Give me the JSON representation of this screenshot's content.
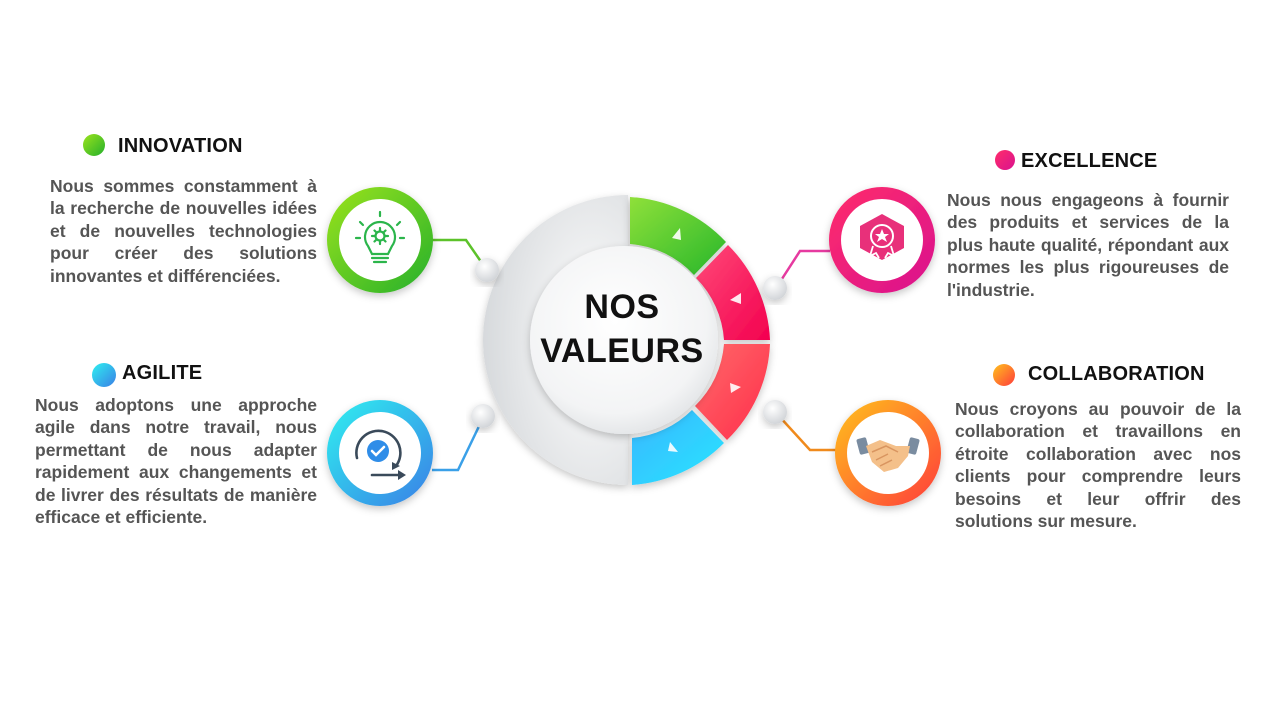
{
  "center": {
    "line1": "NOS",
    "line2": "VALEURS"
  },
  "values": {
    "innovation": {
      "title": "INNOVATION",
      "text": "Nous sommes constamment à la recherche de nouvelles idées et de nouvelles technologies pour créer des solutions innovantes et différenciées.",
      "icon": "lightbulb-gear-icon",
      "colors": [
        "#8cd61c",
        "#2bb52a"
      ]
    },
    "agilite": {
      "title": "AGILITE",
      "text": "Nous adoptons une approche agile dans notre travail, nous permettant de nous adapter rapidement aux changements et de livrer des résultats de manière efficace et efficiente.",
      "icon": "agile-cycle-icon",
      "colors": [
        "#2ee6f0",
        "#3a8ee8"
      ]
    },
    "excellence": {
      "title": "EXCELLENCE",
      "text": "Nous nous engageons à fournir des produits et services de la plus haute qualité, répondant aux normes les plus rigoureuses de l'industrie.",
      "icon": "award-badge-icon",
      "colors": [
        "#ff2a6d",
        "#e6158c"
      ]
    },
    "collaboration": {
      "title": "COLLABORATION",
      "text": "Nous croyons au pouvoir de la collaboration et travaillons en étroite collaboration avec nos clients pour comprendre leurs besoins et leur offrir des solutions sur mesure.",
      "icon": "handshake-icon",
      "colors": [
        "#ffb020",
        "#ff3d3d"
      ]
    }
  }
}
